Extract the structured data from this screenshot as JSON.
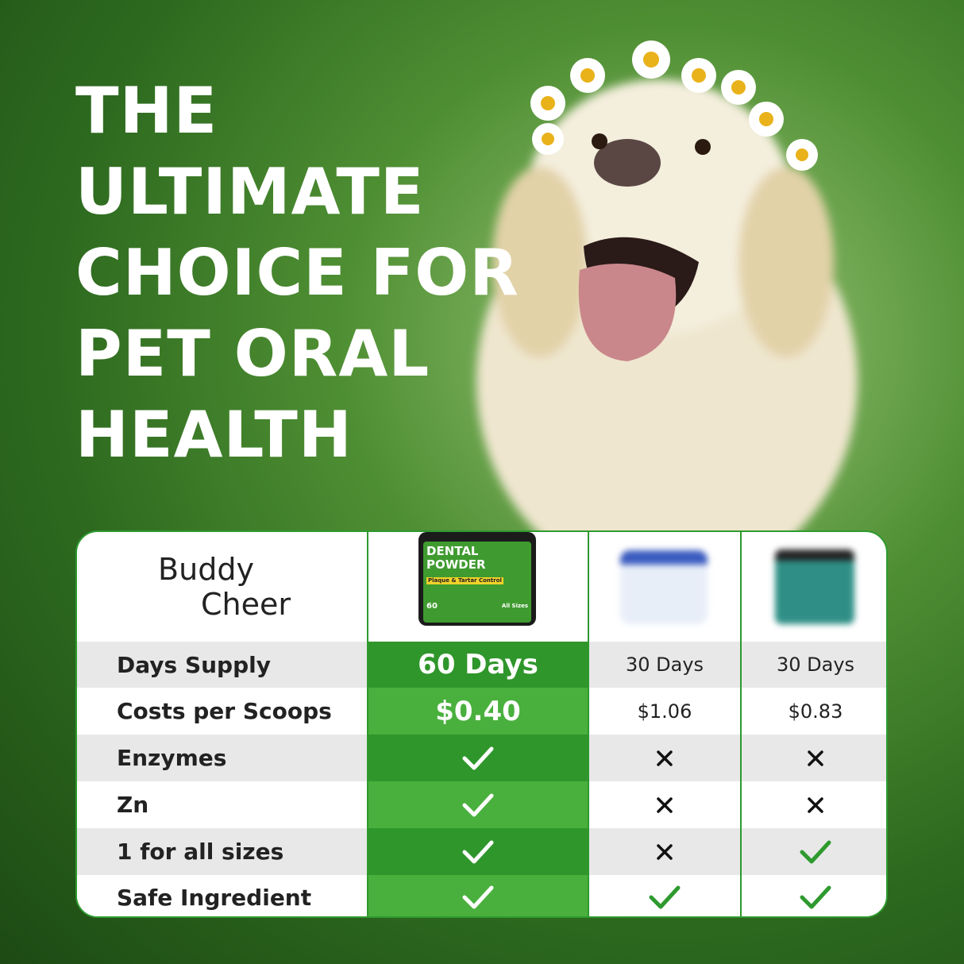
{
  "headline": [
    "THE",
    "ULTIMATE",
    "CHOICE FOR",
    "PET ORAL",
    "HEALTH"
  ],
  "brand": {
    "line1": "Buddy",
    "line2": "Cheer"
  },
  "product": {
    "name_line1": "DENTAL",
    "name_line2": "POWDER",
    "tagline": "Plaque & Tartar Control",
    "count": "60",
    "badge": "All Sizes"
  },
  "table": {
    "rows": [
      {
        "label": "Days Supply",
        "cells": [
          "60 Days",
          "30 Days",
          "30 Days"
        ]
      },
      {
        "label": "Costs per Scoops",
        "cells": [
          "$0.40",
          "$1.06",
          "$0.83"
        ]
      },
      {
        "label": "Enzymes",
        "cells": [
          true,
          false,
          false
        ]
      },
      {
        "label": "Zn",
        "cells": [
          true,
          false,
          false
        ]
      },
      {
        "label": "1 for all sizes",
        "cells": [
          true,
          false,
          true
        ]
      },
      {
        "label": "Safe Ingredient",
        "cells": [
          true,
          true,
          true
        ]
      }
    ]
  }
}
